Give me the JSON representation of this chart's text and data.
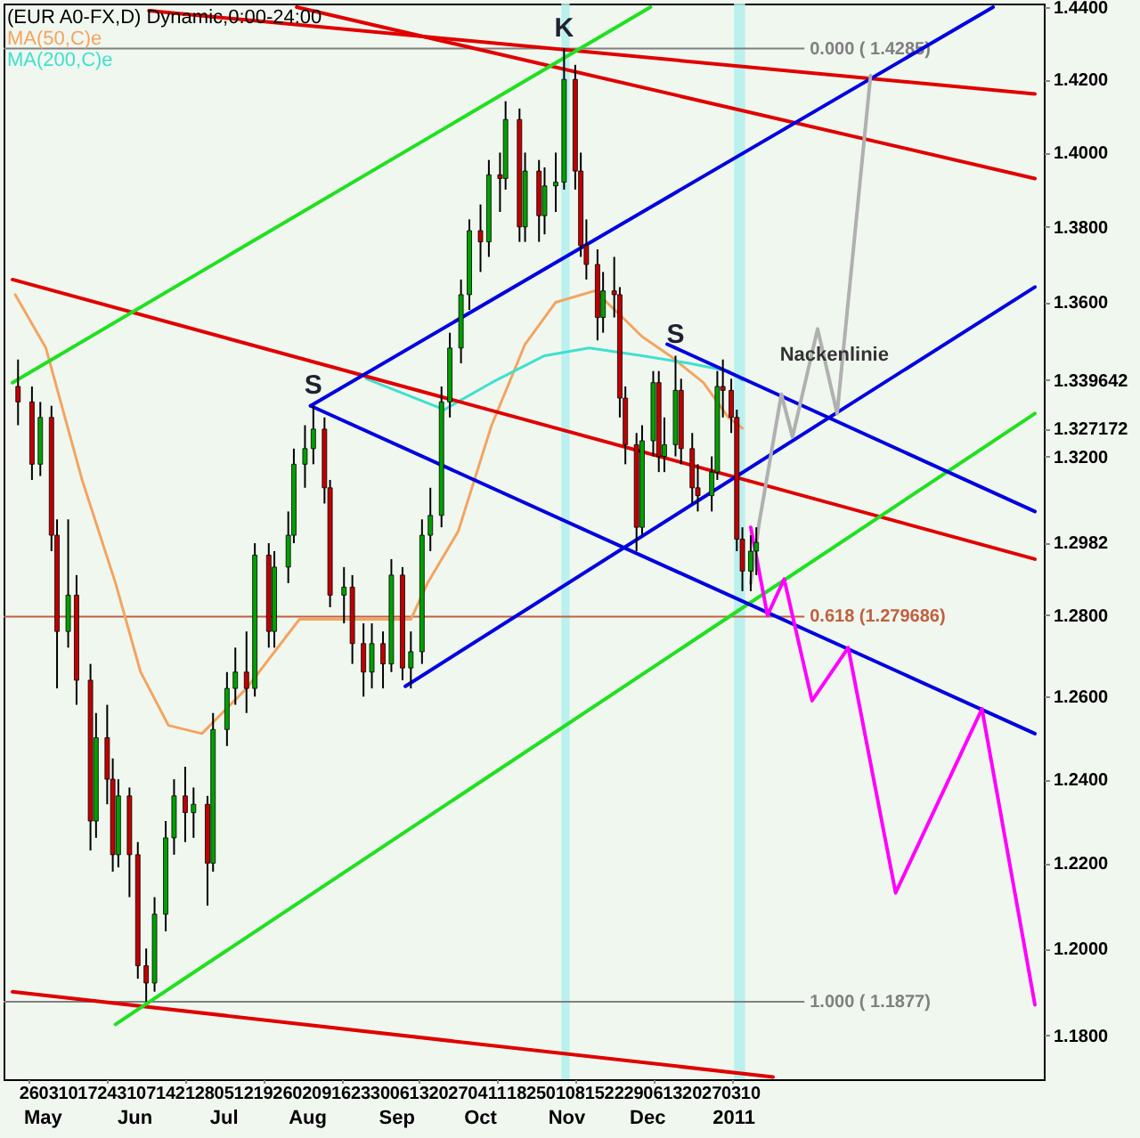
{
  "chart_data": {
    "type": "candlestick",
    "title": "(EUR A0-FX,D) Dynamic,0:00-24:00",
    "log": "y",
    "legend": "top left",
    "xlim": [
      "2010-04-20",
      "2011-04-22"
    ],
    "ylim": [
      1.17,
      1.441
    ],
    "xticks": [
      {
        "value": "2010-04-26",
        "label": "26"
      },
      {
        "value": "2010-05-03",
        "label": "03"
      },
      {
        "value": "2010-05-10",
        "label": "10"
      },
      {
        "value": "2010-05-17",
        "label": "17"
      },
      {
        "value": "2010-05-24",
        "label": "24"
      },
      {
        "value": "2010-05-31",
        "label": "31"
      },
      {
        "value": "2010-06-07",
        "label": "07"
      },
      {
        "value": "2010-06-14",
        "label": "14"
      },
      {
        "value": "2010-06-21",
        "label": "21"
      },
      {
        "value": "2010-06-28",
        "label": "28"
      },
      {
        "value": "2010-07-05",
        "label": "05"
      },
      {
        "value": "2010-07-12",
        "label": "12"
      },
      {
        "value": "2010-07-19",
        "label": "19"
      },
      {
        "value": "2010-07-26",
        "label": "26"
      },
      {
        "value": "2010-08-02",
        "label": "02"
      },
      {
        "value": "2010-08-09",
        "label": "09"
      },
      {
        "value": "2010-08-16",
        "label": "16"
      },
      {
        "value": "2010-08-23",
        "label": "23"
      },
      {
        "value": "2010-08-30",
        "label": "30"
      },
      {
        "value": "2010-09-06",
        "label": "06"
      },
      {
        "value": "2010-09-13",
        "label": "13"
      },
      {
        "value": "2010-09-20",
        "label": "20"
      },
      {
        "value": "2010-09-27",
        "label": "27"
      },
      {
        "value": "2010-10-04",
        "label": "04"
      },
      {
        "value": "2010-10-11",
        "label": "11"
      },
      {
        "value": "2010-10-18",
        "label": "18"
      },
      {
        "value": "2010-10-25",
        "label": "25"
      },
      {
        "value": "2010-11-01",
        "label": "01"
      },
      {
        "value": "2010-11-08",
        "label": "08"
      },
      {
        "value": "2010-11-15",
        "label": "15"
      },
      {
        "value": "2010-11-22",
        "label": "22"
      },
      {
        "value": "2010-11-29",
        "label": "29"
      },
      {
        "value": "2010-12-06",
        "label": "06"
      },
      {
        "value": "2010-12-13",
        "label": "13"
      },
      {
        "value": "2010-12-20",
        "label": "20"
      },
      {
        "value": "2010-12-27",
        "label": "27"
      },
      {
        "value": "2011-01-03",
        "label": "03"
      },
      {
        "value": "2011-01-10",
        "label": "10"
      }
    ],
    "yticks": [
      {
        "value": 1.18,
        "label": "1.1800"
      },
      {
        "value": 1.2,
        "label": "1.2000"
      },
      {
        "value": 1.22,
        "label": "1.2200"
      },
      {
        "value": 1.24,
        "label": "1.2400"
      },
      {
        "value": 1.26,
        "label": "1.2600"
      },
      {
        "value": 1.28,
        "label": "1.2800"
      },
      {
        "value": 1.2982,
        "label": "1.2982"
      },
      {
        "value": 1.32,
        "label": "1.3200"
      },
      {
        "value": 1.327172,
        "label": "1.327172"
      },
      {
        "value": 1.339642,
        "label": "1.339642"
      },
      {
        "value": 1.36,
        "label": "1.3600"
      },
      {
        "value": 1.38,
        "label": "1.3800"
      },
      {
        "value": 1.4,
        "label": "1.4000"
      },
      {
        "value": 1.42,
        "label": "1.4200"
      },
      {
        "value": 1.44,
        "label": "1.4400"
      }
    ],
    "series": [
      {
        "x": [
          "2010-04-22",
          "2010-04-27",
          "2010-04-30",
          "2010-05-04",
          "2010-05-06",
          "2010-05-10",
          "2010-05-13",
          "2010-05-18",
          "2010-05-20",
          "2010-05-24",
          "2010-05-26",
          "2010-05-28",
          "2010-06-01",
          "2010-06-04",
          "2010-06-07",
          "2010-06-10",
          "2010-06-14",
          "2010-06-17",
          "2010-06-21",
          "2010-06-24",
          "2010-06-29",
          "2010-07-01",
          "2010-07-06",
          "2010-07-09",
          "2010-07-13",
          "2010-07-16",
          "2010-07-21",
          "2010-07-23",
          "2010-07-28",
          "2010-07-30",
          "2010-08-03",
          "2010-08-06",
          "2010-08-10",
          "2010-08-12",
          "2010-08-17",
          "2010-08-20",
          "2010-08-24",
          "2010-08-27",
          "2010-08-31",
          "2010-09-03",
          "2010-09-07",
          "2010-09-10",
          "2010-09-14",
          "2010-09-17",
          "2010-09-21",
          "2010-09-24",
          "2010-09-28",
          "2010-10-01",
          "2010-10-05",
          "2010-10-08",
          "2010-10-12",
          "2010-10-14",
          "2010-10-19",
          "2010-10-21",
          "2010-10-26",
          "2010-10-28",
          "2010-11-01",
          "2010-11-04",
          "2010-11-08",
          "2010-11-10",
          "2010-11-12",
          "2010-11-16",
          "2010-11-18",
          "2010-11-22",
          "2010-11-24",
          "2010-11-26",
          "2010-11-30",
          "2010-12-02",
          "2010-12-06",
          "2010-12-08",
          "2010-12-10",
          "2010-12-14",
          "2010-12-16",
          "2010-12-20",
          "2010-12-22",
          "2010-12-27",
          "2010-12-29",
          "2010-12-31",
          "2011-01-03",
          "2011-01-05",
          "2011-01-07",
          "2011-01-10",
          "2011-01-12"
        ],
        "ohlc": [
          [
            1.338,
            1.345,
            1.328,
            1.334
          ],
          [
            1.334,
            1.338,
            1.314,
            1.318
          ],
          [
            1.318,
            1.334,
            1.315,
            1.33
          ],
          [
            1.33,
            1.333,
            1.296,
            1.3
          ],
          [
            1.3,
            1.304,
            1.262,
            1.276
          ],
          [
            1.276,
            1.304,
            1.272,
            1.285
          ],
          [
            1.285,
            1.29,
            1.258,
            1.264
          ],
          [
            1.264,
            1.268,
            1.223,
            1.23
          ],
          [
            1.23,
            1.256,
            1.226,
            1.25
          ],
          [
            1.25,
            1.258,
            1.234,
            1.24
          ],
          [
            1.24,
            1.245,
            1.218,
            1.222
          ],
          [
            1.222,
            1.24,
            1.219,
            1.236
          ],
          [
            1.236,
            1.238,
            1.212,
            1.222
          ],
          [
            1.222,
            1.225,
            1.193,
            1.196
          ],
          [
            1.196,
            1.2,
            1.1877,
            1.192
          ],
          [
            1.192,
            1.212,
            1.19,
            1.208
          ],
          [
            1.208,
            1.23,
            1.204,
            1.226
          ],
          [
            1.226,
            1.24,
            1.222,
            1.236
          ],
          [
            1.236,
            1.243,
            1.225,
            1.232
          ],
          [
            1.232,
            1.238,
            1.226,
            1.234
          ],
          [
            1.234,
            1.236,
            1.21,
            1.22
          ],
          [
            1.22,
            1.256,
            1.218,
            1.252
          ],
          [
            1.252,
            1.266,
            1.248,
            1.262
          ],
          [
            1.262,
            1.272,
            1.258,
            1.266
          ],
          [
            1.266,
            1.276,
            1.256,
            1.262
          ],
          [
            1.262,
            1.298,
            1.26,
            1.295
          ],
          [
            1.295,
            1.298,
            1.272,
            1.276
          ],
          [
            1.276,
            1.296,
            1.272,
            1.292
          ],
          [
            1.292,
            1.306,
            1.288,
            1.3
          ],
          [
            1.3,
            1.322,
            1.298,
            1.318
          ],
          [
            1.318,
            1.328,
            1.312,
            1.322
          ],
          [
            1.322,
            1.333,
            1.318,
            1.327
          ],
          [
            1.327,
            1.33,
            1.308,
            1.312
          ],
          [
            1.312,
            1.314,
            1.282,
            1.285
          ],
          [
            1.285,
            1.292,
            1.278,
            1.287
          ],
          [
            1.287,
            1.29,
            1.268,
            1.273
          ],
          [
            1.273,
            1.278,
            1.26,
            1.266
          ],
          [
            1.266,
            1.278,
            1.262,
            1.273
          ],
          [
            1.273,
            1.276,
            1.262,
            1.268
          ],
          [
            1.268,
            1.294,
            1.266,
            1.29
          ],
          [
            1.29,
            1.292,
            1.264,
            1.267
          ],
          [
            1.267,
            1.276,
            1.262,
            1.271
          ],
          [
            1.271,
            1.304,
            1.268,
            1.3
          ],
          [
            1.3,
            1.312,
            1.296,
            1.305
          ],
          [
            1.305,
            1.338,
            1.302,
            1.334
          ],
          [
            1.334,
            1.352,
            1.33,
            1.348
          ],
          [
            1.348,
            1.366,
            1.344,
            1.362
          ],
          [
            1.362,
            1.382,
            1.358,
            1.379
          ],
          [
            1.379,
            1.386,
            1.368,
            1.376
          ],
          [
            1.376,
            1.398,
            1.372,
            1.394
          ],
          [
            1.394,
            1.4,
            1.384,
            1.393
          ],
          [
            1.393,
            1.414,
            1.39,
            1.409
          ],
          [
            1.409,
            1.412,
            1.376,
            1.38
          ],
          [
            1.38,
            1.4,
            1.376,
            1.395
          ],
          [
            1.395,
            1.398,
            1.376,
            1.383
          ],
          [
            1.383,
            1.396,
            1.378,
            1.391
          ],
          [
            1.391,
            1.4,
            1.384,
            1.392
          ],
          [
            1.392,
            1.4285,
            1.39,
            1.42
          ],
          [
            1.42,
            1.424,
            1.39,
            1.395
          ],
          [
            1.395,
            1.4,
            1.372,
            1.375
          ],
          [
            1.375,
            1.382,
            1.366,
            1.37
          ],
          [
            1.37,
            1.374,
            1.35,
            1.356
          ],
          [
            1.356,
            1.368,
            1.352,
            1.363
          ],
          [
            1.363,
            1.372,
            1.356,
            1.362
          ],
          [
            1.362,
            1.364,
            1.33,
            1.335
          ],
          [
            1.335,
            1.338,
            1.318,
            1.323
          ],
          [
            1.323,
            1.326,
            1.296,
            1.302
          ],
          [
            1.302,
            1.328,
            1.3,
            1.324
          ],
          [
            1.324,
            1.342,
            1.32,
            1.339
          ],
          [
            1.339,
            1.342,
            1.316,
            1.32
          ],
          [
            1.32,
            1.33,
            1.316,
            1.323
          ],
          [
            1.323,
            1.346,
            1.32,
            1.337
          ],
          [
            1.337,
            1.34,
            1.318,
            1.322
          ],
          [
            1.322,
            1.326,
            1.308,
            1.312
          ],
          [
            1.312,
            1.318,
            1.306,
            1.31
          ],
          [
            1.31,
            1.32,
            1.306,
            1.316
          ],
          [
            1.316,
            1.342,
            1.314,
            1.338
          ],
          [
            1.338,
            1.345,
            1.33,
            1.337
          ],
          [
            1.337,
            1.34,
            1.326,
            1.33
          ],
          [
            1.33,
            1.332,
            1.296,
            1.299
          ],
          [
            1.299,
            1.302,
            1.286,
            1.291
          ],
          [
            1.291,
            1.3,
            1.286,
            1.296
          ],
          [
            1.296,
            1.302,
            1.29,
            1.2982
          ]
        ],
        "colors": [
          "#c00000",
          "#c00000",
          "#00a000",
          "#c00000",
          "#c00000",
          "#00a000",
          "#c00000",
          "#c00000",
          "#00a000",
          "#c00000",
          "#c00000",
          "#00a000",
          "#c00000",
          "#c00000",
          "#c00000",
          "#00a000",
          "#00a000",
          "#00a000",
          "#c00000",
          "#00a000",
          "#c00000",
          "#00a000",
          "#00a000",
          "#00a000",
          "#c00000",
          "#00a000",
          "#c00000",
          "#00a000",
          "#00a000",
          "#00a000",
          "#00a000",
          "#00a000",
          "#c00000",
          "#c00000",
          "#00a000",
          "#c00000",
          "#c00000",
          "#00a000",
          "#c00000",
          "#00a000",
          "#c00000",
          "#00a000",
          "#00a000",
          "#00a000",
          "#00a000",
          "#00a000",
          "#00a000",
          "#00a000",
          "#c00000",
          "#00a000",
          "#c00000",
          "#00a000",
          "#c00000",
          "#00a000",
          "#c00000",
          "#00a000",
          "#00a000",
          "#00a000",
          "#c00000",
          "#c00000",
          "#c00000",
          "#c00000",
          "#00a000",
          "#c00000",
          "#c00000",
          "#c00000",
          "#c00000",
          "#00a000",
          "#00a000",
          "#c00000",
          "#00a000",
          "#00a000",
          "#c00000",
          "#c00000",
          "#c00000",
          "#00a000",
          "#00a000",
          "#c00000",
          "#c00000",
          "#c00000",
          "#c00000",
          "#00a000",
          "#00a000"
        ]
      },
      {
        "name": "MA(50,C)e",
        "type": "line",
        "color": "#f4a460",
        "x": [
          "2010-04-21",
          "2010-05-02",
          "2010-05-15",
          "2010-05-27",
          "2010-06-05",
          "2010-06-15",
          "2010-06-27",
          "2010-07-13",
          "2010-08-01",
          "2010-08-22",
          "2010-09-10",
          "2010-09-16",
          "2010-09-27",
          "2010-10-09",
          "2010-10-21",
          "2010-11-01",
          "2010-11-15",
          "2010-11-25",
          "2010-12-02",
          "2010-12-12",
          "2010-12-24",
          "2011-01-02",
          "2011-01-07"
        ],
        "values": [
          1.362,
          1.348,
          1.314,
          1.288,
          1.266,
          1.253,
          1.251,
          1.262,
          1.279,
          1.279,
          1.279,
          1.288,
          1.301,
          1.328,
          1.349,
          1.36,
          1.363,
          1.356,
          1.351,
          1.346,
          1.339,
          1.33,
          1.3272
        ]
      },
      {
        "name": "MA(200,C)e",
        "type": "line",
        "color": "#40e0d0",
        "x": [
          "2010-08-25",
          "2010-09-22",
          "2010-10-09",
          "2010-10-28",
          "2010-11-13",
          "2010-12-02",
          "2010-12-19",
          "2011-01-02",
          "2011-01-07"
        ],
        "values": [
          1.34,
          1.332,
          1.339,
          1.346,
          1.348,
          1.346,
          1.344,
          1.342,
          1.3396
        ]
      },
      {
        "type": "line",
        "color": "#e00000",
        "x": [
          "2010-06-08",
          "2011-04-22"
        ],
        "values": [
          1.439,
          1.416
        ]
      },
      {
        "type": "line",
        "color": "#e00000",
        "x": [
          "2010-07-31",
          "2011-04-22"
        ],
        "values": [
          1.44,
          1.393
        ]
      },
      {
        "type": "line",
        "color": "#e00000",
        "x": [
          "2010-04-20",
          "2011-04-22"
        ],
        "values": [
          1.366,
          1.294
        ]
      },
      {
        "type": "line",
        "color": "#e00000",
        "x": [
          "2010-04-20",
          "2011-01-18"
        ],
        "values": [
          1.19,
          1.1705
        ]
      },
      {
        "type": "line",
        "color": "#20e020",
        "x": [
          "2010-04-20",
          "2010-12-05"
        ],
        "values": [
          1.339,
          1.44
        ]
      },
      {
        "type": "line",
        "color": "#20e020",
        "x": [
          "2010-05-27",
          "2011-04-22"
        ],
        "values": [
          1.1825,
          1.331
        ]
      },
      {
        "type": "line",
        "color": "#0000e0",
        "x": [
          "2010-08-05",
          "2011-04-07"
        ],
        "values": [
          1.333,
          1.44
        ]
      },
      {
        "type": "line",
        "color": "#0000e0",
        "x": [
          "2010-08-05",
          "2011-04-22"
        ],
        "values": [
          1.333,
          1.251
        ]
      },
      {
        "type": "line",
        "color": "#0000e0",
        "x": [
          "2010-09-08",
          "2011-04-22"
        ],
        "values": [
          1.2625,
          1.364
        ]
      },
      {
        "type": "line",
        "color": "#0000e0",
        "x": [
          "2010-12-11",
          "2011-04-22"
        ],
        "values": [
          1.349,
          1.306
        ]
      },
      {
        "type": "line",
        "color": "#ff00ff",
        "x": [
          "2011-01-10",
          "2011-01-16",
          "2011-01-22",
          "2011-02-01",
          "2011-02-14",
          "2011-03-03",
          "2011-04-03",
          "2011-04-22"
        ],
        "values": [
          1.302,
          1.28,
          1.289,
          1.259,
          1.272,
          1.213,
          1.257,
          1.187
        ]
      },
      {
        "type": "line",
        "color": "#b0b0b0",
        "x": [
          "2011-01-10",
          "2011-01-13",
          "2011-01-21",
          "2011-01-25",
          "2011-02-03",
          "2011-02-10",
          "2011-02-22"
        ],
        "values": [
          1.288,
          1.303,
          1.336,
          1.325,
          1.353,
          1.331,
          1.421
        ]
      }
    ],
    "ref_lines": [
      {
        "axis": "y",
        "value": 1.4285,
        "label": "0.000 ( 1.4285)",
        "color": "#808080"
      },
      {
        "axis": "y",
        "value": 1.279686,
        "label": "0.618 (1.279686)",
        "color": "#c06040"
      },
      {
        "axis": "y",
        "value": 1.1877,
        "label": "1.000 ( 1.1877)",
        "color": "#808080"
      }
    ],
    "bands": [
      {
        "axis": "x",
        "from": "2010-11-03",
        "to": "2010-11-06",
        "color": "#b0f0ee"
      },
      {
        "axis": "x",
        "from": "2011-01-04",
        "to": "2011-01-08",
        "color": "#b0f0ee"
      }
    ],
    "annotations": [
      {
        "text": "K",
        "x": "2010-11-04",
        "y": 1.4285
      },
      {
        "text": "S",
        "x": "2010-08-06",
        "y": 1.333
      },
      {
        "text": "S",
        "x": "2010-12-14",
        "y": 1.346
      },
      {
        "text": "Nackenlinie",
        "x": "2011-02-09",
        "y": 1.346
      }
    ],
    "x2lim": [
      "2010-04-20",
      "2011-04-22"
    ],
    "x2ticks": [
      {
        "value": "2010-05-01",
        "label": "May"
      },
      {
        "value": "2010-06-03",
        "label": "Jun"
      },
      {
        "value": "2010-07-05",
        "label": "Jul"
      },
      {
        "value": "2010-08-04",
        "label": "Aug"
      },
      {
        "value": "2010-09-05",
        "label": "Sep"
      },
      {
        "value": "2010-10-05",
        "label": "Oct"
      },
      {
        "value": "2010-11-05",
        "label": "Nov"
      },
      {
        "value": "2010-12-04",
        "label": "Dec"
      },
      {
        "value": "2011-01-04",
        "label": "2011"
      }
    ]
  }
}
